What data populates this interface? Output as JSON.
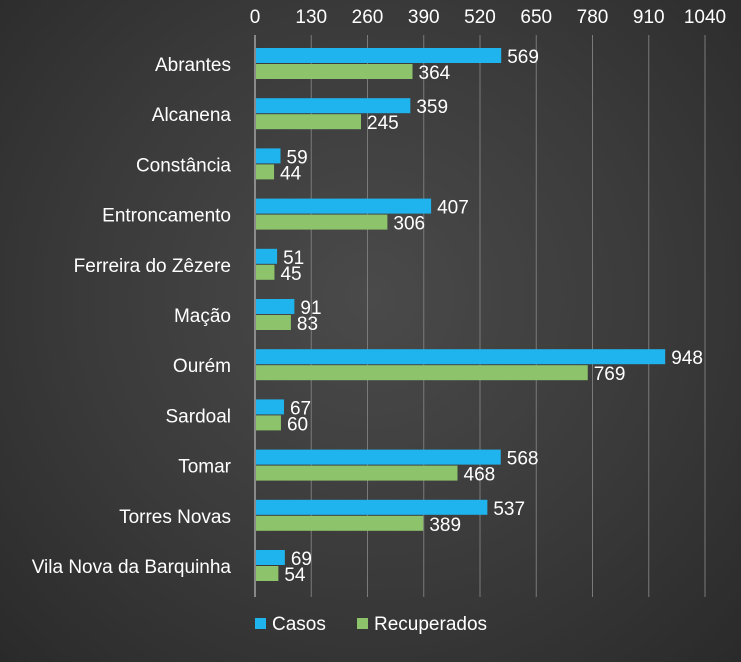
{
  "chart_data": {
    "type": "bar",
    "orientation": "horizontal",
    "categories": [
      "Abrantes",
      "Alcanena",
      "Constância",
      "Entroncamento",
      "Ferreira do Zêzere",
      "Mação",
      "Ourém",
      "Sardoal",
      "Tomar",
      "Torres Novas",
      "Vila Nova da Barquinha"
    ],
    "series": [
      {
        "name": "Casos",
        "color": "#1fb4ee",
        "values": [
          569,
          359,
          59,
          407,
          51,
          91,
          948,
          67,
          568,
          537,
          69
        ]
      },
      {
        "name": "Recuperados",
        "color": "#8dc36a",
        "values": [
          364,
          245,
          44,
          306,
          45,
          83,
          769,
          60,
          468,
          389,
          54
        ]
      }
    ],
    "x_ticks": [
      "0",
      "130",
      "260",
      "390",
      "520",
      "650",
      "780",
      "910",
      "1040"
    ],
    "xlim": [
      0,
      1040
    ],
    "x_axis_position": "top",
    "grid": true,
    "legend_position": "bottom-left",
    "data_labels": true
  }
}
